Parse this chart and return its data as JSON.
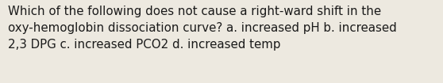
{
  "line1": "Which of the following does not cause a right-ward shift in the",
  "line2": "oxy-hemoglobin dissociation curve? a. increased pH b. increased",
  "line3": "2,3 DPG c. increased PCO2 d. increased temp",
  "background_color": "#ede9e0",
  "text_color": "#1a1a1a",
  "font_size": 10.8,
  "fig_width": 5.58,
  "fig_height": 1.05,
  "dpi": 100
}
